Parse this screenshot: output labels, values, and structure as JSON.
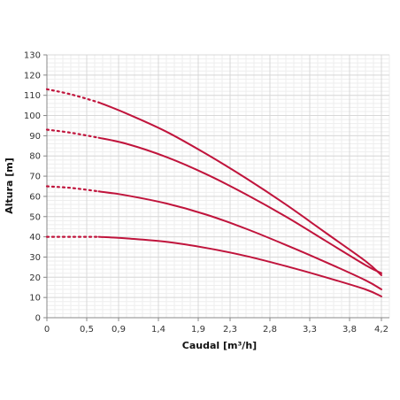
{
  "chart_data": {
    "type": "line",
    "xlabel": "Caudal [m³/h]",
    "ylabel": "Altura [m]",
    "xlim": [
      0,
      4.3
    ],
    "ylim": [
      0,
      130
    ],
    "x_ticks": [
      0,
      0.5,
      0.9,
      1.4,
      1.9,
      2.3,
      2.8,
      3.3,
      3.8,
      4.2
    ],
    "x_tick_labels": [
      "0",
      "0,5",
      "0,9",
      "1,4",
      "1,9",
      "2,3",
      "2,8",
      "3,3",
      "3,8",
      "4,2"
    ],
    "y_ticks": [
      0,
      10,
      20,
      30,
      40,
      50,
      60,
      70,
      80,
      90,
      100,
      110,
      120,
      130
    ],
    "y_tick_labels": [
      "0",
      "10",
      "20",
      "30",
      "40",
      "50",
      "60",
      "70",
      "80",
      "90",
      "100",
      "110",
      "120",
      "130"
    ],
    "grid": true,
    "line_color": "#c0143c",
    "series": [
      {
        "dashed_segment": {
          "x": [
            0,
            0.3,
            0.65
          ],
          "y": [
            113,
            110.5,
            106.5
          ]
        },
        "solid_segment": {
          "x": [
            0.65,
            1.0,
            1.5,
            2.0,
            2.5,
            3.0,
            3.5,
            4.0,
            4.2
          ],
          "y": [
            106.5,
            101,
            92,
            81,
            69,
            56,
            42,
            28,
            21
          ]
        }
      },
      {
        "dashed_segment": {
          "x": [
            0,
            0.3,
            0.65
          ],
          "y": [
            93,
            91.5,
            89
          ]
        },
        "solid_segment": {
          "x": [
            0.65,
            1.0,
            1.5,
            2.0,
            2.5,
            3.0,
            3.5,
            4.0,
            4.2
          ],
          "y": [
            89,
            86,
            79.5,
            71,
            61,
            50,
            38,
            26,
            22
          ]
        }
      },
      {
        "dashed_segment": {
          "x": [
            0,
            0.3,
            0.65
          ],
          "y": [
            65,
            64.2,
            62.5
          ]
        },
        "solid_segment": {
          "x": [
            0.65,
            1.0,
            1.5,
            2.0,
            2.5,
            3.0,
            3.5,
            4.0,
            4.2
          ],
          "y": [
            62.5,
            60.5,
            56.5,
            51,
            44,
            36,
            27.5,
            18.5,
            14
          ]
        }
      },
      {
        "dashed_segment": {
          "x": [
            0,
            0.3,
            0.65
          ],
          "y": [
            40,
            40,
            40
          ]
        },
        "solid_segment": {
          "x": [
            0.65,
            1.0,
            1.5,
            2.0,
            2.5,
            3.0,
            3.5,
            4.0,
            4.2
          ],
          "y": [
            40,
            39.2,
            37.5,
            34.5,
            30.5,
            25.5,
            20,
            14,
            10.5
          ]
        }
      }
    ]
  }
}
